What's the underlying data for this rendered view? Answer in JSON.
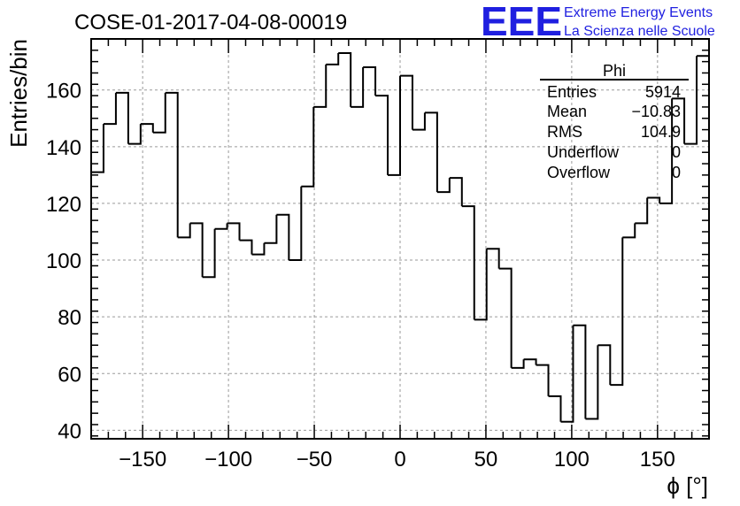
{
  "chart_data": {
    "type": "histogram",
    "title": "COSE-01-2017-04-08-00019",
    "xlabel": "ϕ [°]",
    "ylabel": "Entries/bin",
    "xlim": [
      -180,
      180
    ],
    "ylim": [
      37,
      178
    ],
    "grid": true,
    "xticks": [
      -150,
      -100,
      -50,
      0,
      50,
      100,
      150
    ],
    "xtick_labels": [
      "−150",
      "−100",
      "−50",
      "0",
      "50",
      "100",
      "150"
    ],
    "yticks": [
      40,
      60,
      80,
      100,
      120,
      140,
      160
    ],
    "ytick_labels": [
      "40",
      "60",
      "80",
      "100",
      "120",
      "140",
      "160"
    ],
    "bin_edges": [
      -180,
      -172.8,
      -165.6,
      -158.4,
      -151.2,
      -144,
      -136.8,
      -129.6,
      -122.4,
      -115.2,
      -108,
      -100.8,
      -93.6,
      -86.4,
      -79.2,
      -72,
      -64.8,
      -57.6,
      -50.4,
      -43.2,
      -36,
      -28.8,
      -21.6,
      -14.4,
      -7.2,
      0,
      7.2,
      14.4,
      21.6,
      28.8,
      36,
      43.2,
      50.4,
      57.6,
      64.8,
      72,
      79.2,
      86.4,
      93.6,
      100.8,
      108,
      115.2,
      122.4,
      129.6,
      136.8,
      144,
      151.2,
      158.4,
      165.6,
      172.8,
      180
    ],
    "values": [
      131,
      148,
      159,
      141,
      148,
      145,
      159,
      108,
      113,
      94,
      111,
      113,
      107,
      102,
      106,
      116,
      100,
      126,
      154,
      169,
      173,
      154,
      168,
      158,
      130,
      165,
      146,
      152,
      124,
      129,
      119,
      79,
      104,
      97,
      62,
      65,
      63,
      52,
      43,
      77,
      44,
      70,
      56,
      108,
      113,
      122,
      120,
      157,
      141,
      172
    ]
  },
  "logo": {
    "mark": "EEE",
    "line1": "Extreme Energy Events",
    "line2": "La Scienza nelle Scuole"
  },
  "stats_box": {
    "title": "Phi",
    "rows": [
      {
        "label": "Entries",
        "value": "5914"
      },
      {
        "label": "Mean",
        "value": "−10.83"
      },
      {
        "label": "RMS",
        "value": "104.9"
      },
      {
        "label": "Underflow",
        "value": "0"
      },
      {
        "label": "Overflow",
        "value": "0"
      }
    ]
  }
}
